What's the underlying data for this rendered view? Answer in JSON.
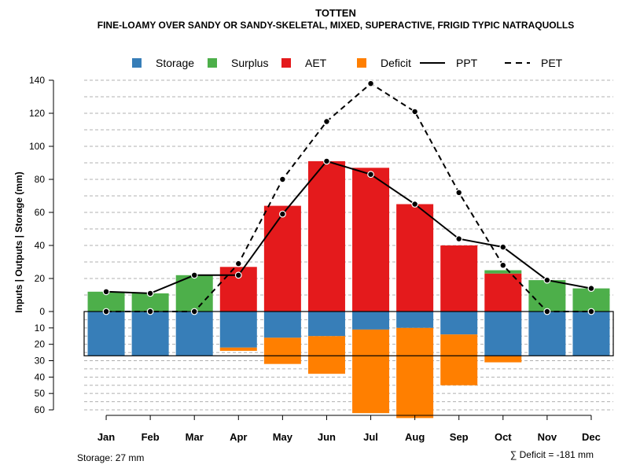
{
  "chart_data": {
    "type": "bar",
    "title": "TOTTEN",
    "subtitle": "FINE-LOAMY OVER SANDY OR SANDY-SKELETAL, MIXED, SUPERACTIVE, FRIGID TYPIC NATRAQUOLLS",
    "ylabel": "Inputs | Outputs | Storage    (mm)",
    "categories": [
      "Jan",
      "Feb",
      "Mar",
      "Apr",
      "May",
      "Jun",
      "Jul",
      "Aug",
      "Sep",
      "Oct",
      "Nov",
      "Dec"
    ],
    "upper_ylim": [
      0,
      140
    ],
    "upper_ticks": [
      "0",
      "20",
      "40",
      "60",
      "80",
      "100",
      "120",
      "140"
    ],
    "lower_ylim": [
      0,
      60
    ],
    "lower_ticks": [
      "10",
      "20",
      "30",
      "40",
      "50",
      "60"
    ],
    "legend": [
      {
        "name": "Storage",
        "kind": "square",
        "color": "#377eb8"
      },
      {
        "name": "Surplus",
        "kind": "square",
        "color": "#4daf4a"
      },
      {
        "name": "AET",
        "kind": "square",
        "color": "#e41a1c"
      },
      {
        "name": "Deficit",
        "kind": "square",
        "color": "#ff7f00"
      },
      {
        "name": "PPT",
        "kind": "solid"
      },
      {
        "name": "PET",
        "kind": "dashed"
      }
    ],
    "series": [
      {
        "name": "Storage",
        "values": [
          27,
          27,
          27,
          22,
          16,
          15,
          11,
          10,
          14,
          27,
          27,
          27
        ]
      },
      {
        "name": "Surplus",
        "values": [
          12,
          11,
          22,
          0,
          0,
          0,
          0,
          0,
          0,
          2,
          19,
          14
        ]
      },
      {
        "name": "AET",
        "values": [
          0,
          0,
          0,
          27,
          64,
          91,
          87,
          65,
          40,
          23,
          0,
          0
        ]
      },
      {
        "name": "Deficit",
        "values": [
          0,
          0,
          0,
          2,
          16,
          23,
          51,
          55,
          31,
          4,
          0,
          0
        ]
      },
      {
        "name": "PPT",
        "values": [
          12,
          11,
          22,
          22,
          59,
          91,
          83,
          65,
          44,
          39,
          19,
          14
        ]
      },
      {
        "name": "PET",
        "values": [
          0,
          0,
          0,
          29,
          80,
          115,
          138,
          121,
          72,
          28,
          0,
          0
        ]
      }
    ],
    "storage_capacity": 27,
    "grid": true
  },
  "footer": {
    "storage_label": "Storage: 27 mm",
    "deficit_label": "∑ Deficit = -181 mm"
  }
}
